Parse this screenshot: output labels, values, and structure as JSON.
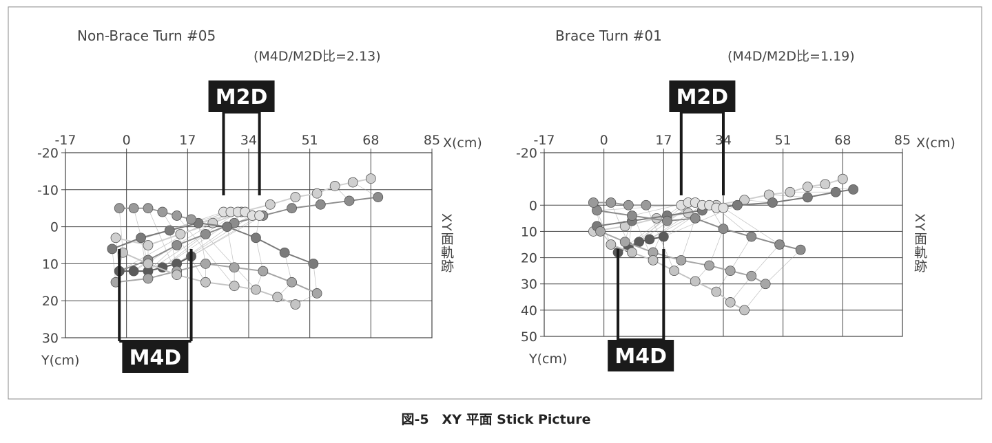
{
  "figure": {
    "caption": "図-5　XY 平面 Stick Picture"
  },
  "chart_data": [
    {
      "type": "scatter",
      "title": "Non-Brace Turn #05",
      "subtitle": "(M4D/M2D比=2.13)",
      "xlabel": "X(cm)",
      "ylabel": "Y(cm)",
      "side_label": "XY面軌跡",
      "x_ticks": [
        -17,
        0,
        17,
        34,
        51,
        68,
        85
      ],
      "y_ticks": [
        -20,
        -10,
        0,
        10,
        20,
        30
      ],
      "xlim": [
        -17,
        85
      ],
      "ylim": [
        -20,
        30
      ],
      "y_inverted": true,
      "grid": true,
      "markers": [
        {
          "label": "M2D",
          "x_range": [
            27,
            37
          ]
        },
        {
          "label": "M4D",
          "x_range": [
            -2,
            18
          ]
        }
      ],
      "series": [
        {
          "color": "#cfcfcf",
          "x": [
            -3,
            6,
            15,
            24,
            32,
            40,
            47,
            53,
            58,
            63,
            68
          ],
          "y": [
            3,
            5,
            2,
            -1,
            -4,
            -6,
            -8,
            -9,
            -11,
            -12,
            -13
          ]
        },
        {
          "color": "#8c8c8c",
          "x": [
            -2,
            6,
            14,
            22,
            30,
            38,
            46,
            54,
            62,
            70
          ],
          "y": [
            12,
            9,
            5,
            2,
            -1,
            -3,
            -5,
            -6,
            -7,
            -8
          ]
        },
        {
          "color": "#5a5a5a",
          "x": [
            -2,
            2,
            6,
            10,
            14,
            18
          ],
          "y": [
            12,
            12,
            12,
            11,
            10,
            8
          ]
        },
        {
          "color": "#e0e0e0",
          "x": [
            27,
            29,
            31,
            33,
            35,
            37
          ],
          "y": [
            -4,
            -4,
            -4,
            -4,
            -3,
            -3
          ]
        },
        {
          "color": "#7a7a7a",
          "x": [
            -4,
            4,
            12,
            20,
            28,
            36,
            44,
            52
          ],
          "y": [
            6,
            3,
            1,
            -1,
            0,
            3,
            7,
            10
          ]
        },
        {
          "color": "#a6a6a6",
          "x": [
            -3,
            6,
            14,
            22,
            30,
            38,
            46,
            53
          ],
          "y": [
            15,
            14,
            12,
            10,
            11,
            12,
            15,
            18
          ]
        },
        {
          "color": "#c4c4c4",
          "x": [
            -1,
            6,
            14,
            22,
            30,
            36,
            42,
            47
          ],
          "y": [
            7,
            10,
            13,
            15,
            16,
            17,
            19,
            21
          ]
        },
        {
          "color": "#9a9a9a",
          "x": [
            -2,
            2,
            6,
            10,
            14,
            18
          ],
          "y": [
            -5,
            -5,
            -5,
            -4,
            -3,
            -2
          ]
        }
      ]
    },
    {
      "type": "scatter",
      "title": "Brace Turn #01",
      "subtitle": "(M4D/M2D比=1.19)",
      "xlabel": "X(cm)",
      "ylabel": "Y(cm)",
      "side_label": "XY面軌跡",
      "x_ticks": [
        -17,
        0,
        17,
        34,
        51,
        68,
        85
      ],
      "y_ticks": [
        -20,
        0,
        10,
        20,
        30,
        40,
        50
      ],
      "xlim": [
        -17,
        85
      ],
      "ylim": [
        -20,
        50
      ],
      "y_inverted": true,
      "grid": true,
      "markers": [
        {
          "label": "M2D",
          "x_range": [
            22,
            34
          ]
        },
        {
          "label": "M4D",
          "x_range": [
            4,
            17
          ]
        }
      ],
      "series": [
        {
          "color": "#cfcfcf",
          "x": [
            -3,
            6,
            15,
            24,
            32,
            40,
            47,
            53,
            58,
            63,
            68
          ],
          "y": [
            10,
            8,
            5,
            3,
            0,
            -2,
            -4,
            -5,
            -7,
            -8,
            -10
          ]
        },
        {
          "color": "#7a7a7a",
          "x": [
            -2,
            8,
            18,
            28,
            38,
            48,
            58,
            66,
            71
          ],
          "y": [
            8,
            6,
            4,
            2,
            0,
            -1,
            -3,
            -5,
            -6
          ]
        },
        {
          "color": "#5a5a5a",
          "x": [
            4,
            7,
            10,
            13,
            17
          ],
          "y": [
            18,
            16,
            14,
            13,
            12
          ]
        },
        {
          "color": "#e0e0e0",
          "x": [
            22,
            24,
            26,
            28,
            30,
            32,
            34
          ],
          "y": [
            0,
            -1,
            -1,
            0,
            0,
            1,
            1
          ]
        },
        {
          "color": "#8c8c8c",
          "x": [
            -2,
            8,
            18,
            26,
            34,
            42,
            50,
            56
          ],
          "y": [
            2,
            4,
            6,
            5,
            9,
            12,
            15,
            17
          ]
        },
        {
          "color": "#a6a6a6",
          "x": [
            -1,
            6,
            14,
            22,
            30,
            36,
            42,
            46
          ],
          "y": [
            10,
            14,
            18,
            21,
            23,
            25,
            27,
            30
          ]
        },
        {
          "color": "#c4c4c4",
          "x": [
            2,
            8,
            14,
            20,
            26,
            32,
            36,
            40
          ],
          "y": [
            15,
            18,
            21,
            25,
            29,
            33,
            37,
            40
          ]
        },
        {
          "color": "#9a9a9a",
          "x": [
            -3,
            2,
            7,
            12
          ],
          "y": [
            -1,
            -1,
            0,
            0
          ]
        }
      ]
    }
  ]
}
